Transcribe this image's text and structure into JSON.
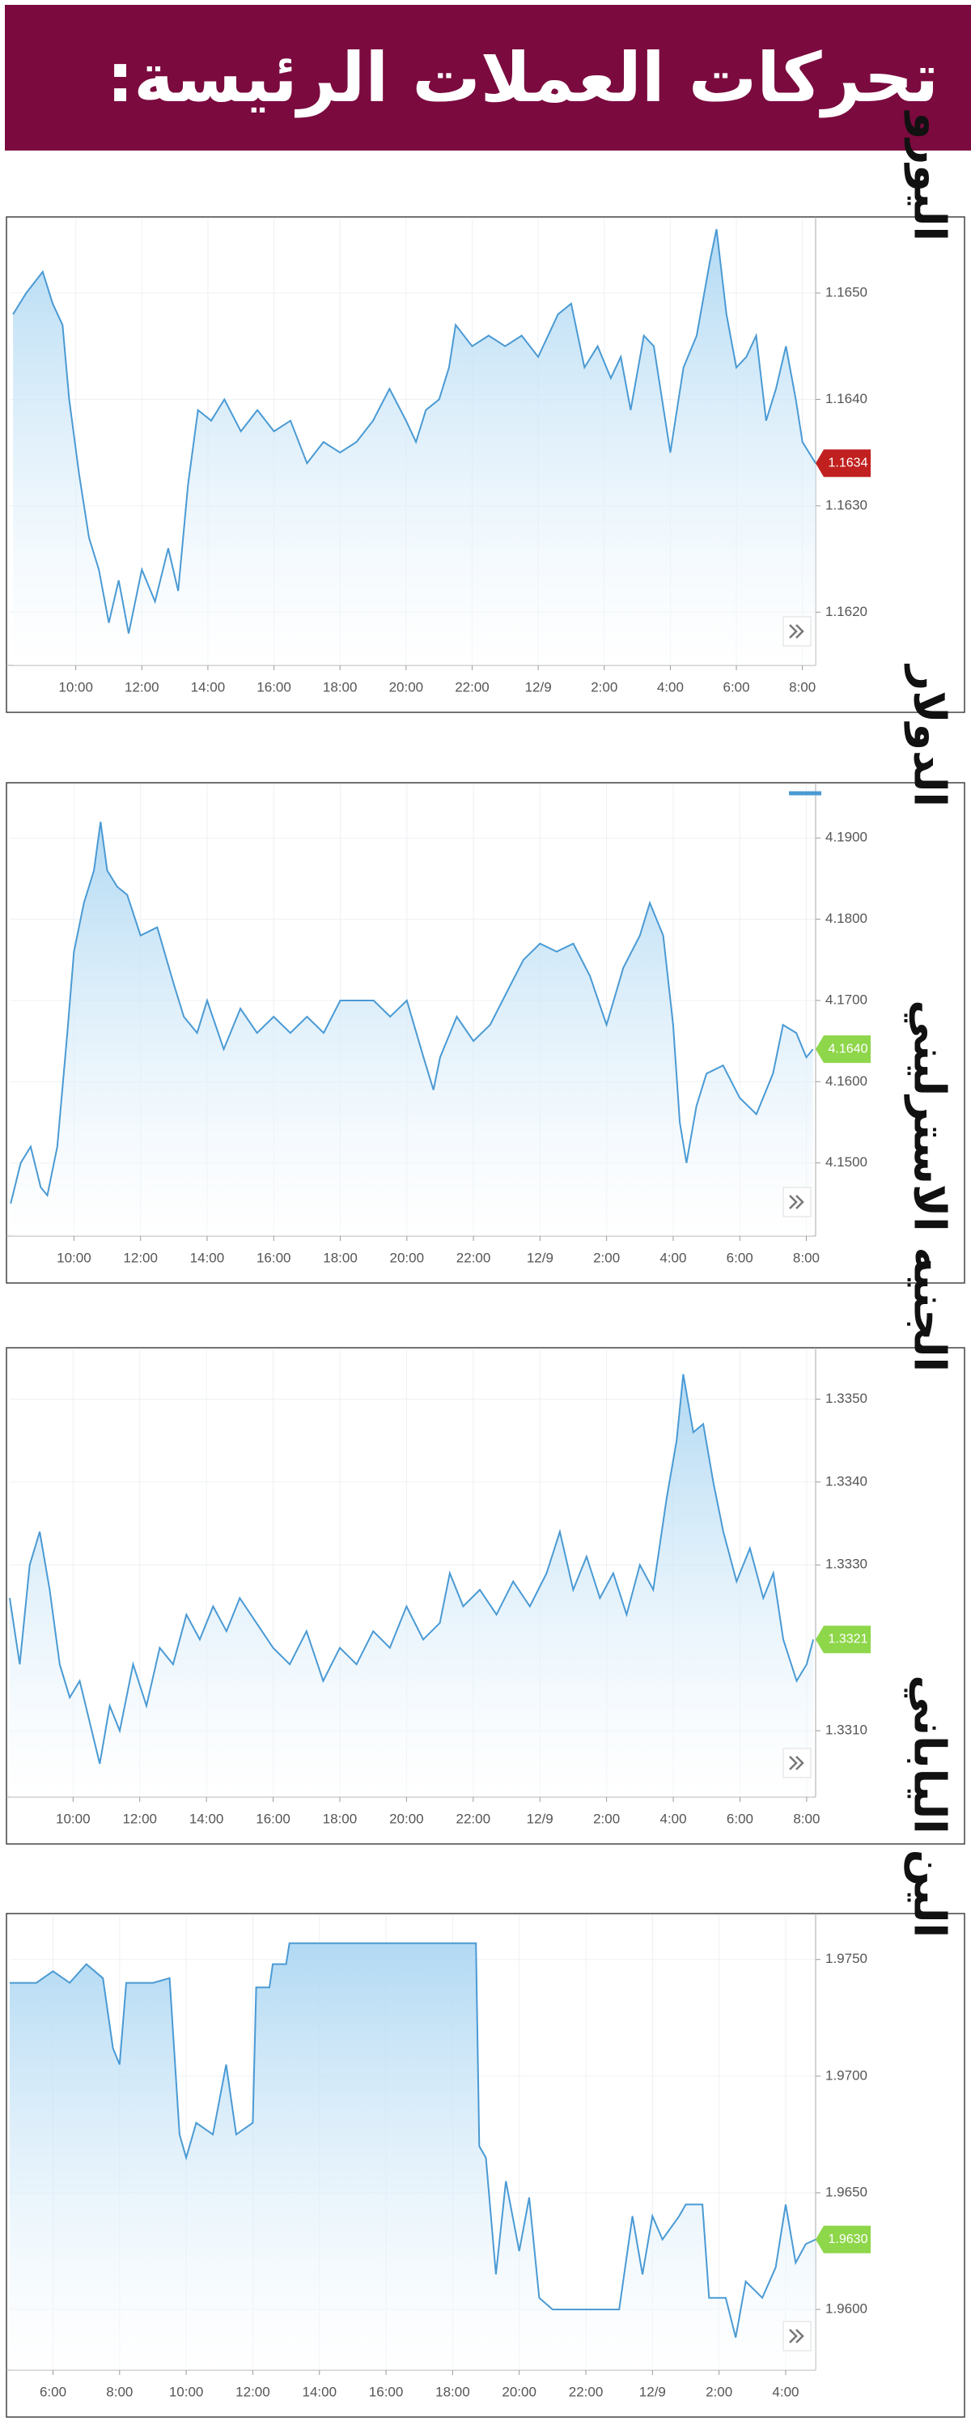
{
  "title": "تحركات العملات الرئيسة:",
  "chart_data": [
    {
      "type": "line",
      "title": "اليورو",
      "color": "#4a9ad4",
      "grid": true,
      "xlim": [
        8,
        32.4
      ],
      "ylim": [
        1.1615,
        1.1657
      ],
      "xticks": [
        {
          "value": 10,
          "label": "10:00"
        },
        {
          "value": 12,
          "label": "12:00"
        },
        {
          "value": 14,
          "label": "14:00"
        },
        {
          "value": 16,
          "label": "16:00"
        },
        {
          "value": 18,
          "label": "18:00"
        },
        {
          "value": 20,
          "label": "20:00"
        },
        {
          "value": 22,
          "label": "22:00"
        },
        {
          "value": 24,
          "label": "12/9"
        },
        {
          "value": 26,
          "label": "2:00"
        },
        {
          "value": 28,
          "label": "4:00"
        },
        {
          "value": 30,
          "label": "6:00"
        },
        {
          "value": 32,
          "label": "8:00"
        }
      ],
      "yticks": [
        {
          "value": 1.162,
          "label": "1.1620"
        },
        {
          "value": 1.163,
          "label": "1.1630"
        },
        {
          "value": 1.164,
          "label": "1.1640"
        },
        {
          "value": 1.165,
          "label": "1.1650"
        }
      ],
      "x": [
        8.1,
        8.5,
        9.0,
        9.3,
        9.6,
        9.8,
        10.1,
        10.4,
        10.7,
        11,
        11.3,
        11.6,
        12,
        12.4,
        12.8,
        13.1,
        13.4,
        13.7,
        14.1,
        14.5,
        15,
        15.5,
        16,
        16.5,
        17,
        17.5,
        18,
        18.5,
        19,
        19.5,
        20,
        20.3,
        20.6,
        21,
        21.3,
        21.5,
        22,
        22.5,
        23,
        23.5,
        24,
        24.3,
        24.6,
        25,
        25.4,
        25.8,
        26.2,
        26.5,
        26.8,
        27.2,
        27.5,
        28,
        28.4,
        28.8,
        29.2,
        29.4,
        29.7,
        30,
        30.3,
        30.6,
        30.9,
        31.2,
        31.5,
        31.8,
        32,
        32.4
      ],
      "values": [
        1.1648,
        1.165,
        1.1652,
        1.1649,
        1.1647,
        1.164,
        1.1633,
        1.1627,
        1.1624,
        1.1619,
        1.1623,
        1.1618,
        1.1624,
        1.1621,
        1.1626,
        1.1622,
        1.1632,
        1.1639,
        1.1638,
        1.164,
        1.1637,
        1.1639,
        1.1637,
        1.1638,
        1.1634,
        1.1636,
        1.1635,
        1.1636,
        1.1638,
        1.1641,
        1.1638,
        1.1636,
        1.1639,
        1.164,
        1.1643,
        1.1647,
        1.1645,
        1.1646,
        1.1645,
        1.1646,
        1.1644,
        1.1646,
        1.1648,
        1.1649,
        1.1643,
        1.1645,
        1.1642,
        1.1644,
        1.1639,
        1.1646,
        1.1645,
        1.1635,
        1.1643,
        1.1646,
        1.1653,
        1.1656,
        1.1648,
        1.1643,
        1.1644,
        1.1646,
        1.1638,
        1.1641,
        1.1645,
        1.164,
        1.1636,
        1.1634
      ],
      "marker": {
        "value": 1.1634,
        "color": "#c0201f"
      }
    },
    {
      "type": "line",
      "title": "الدولار",
      "color": "#4a9ad4",
      "grid": true,
      "xlim": [
        8.07,
        32.28
      ],
      "ylim": [
        4.141,
        4.1966
      ],
      "xticks": [
        {
          "value": 10,
          "label": "10:00"
        },
        {
          "value": 12,
          "label": "12:00"
        },
        {
          "value": 14,
          "label": "14:00"
        },
        {
          "value": 16,
          "label": "16:00"
        },
        {
          "value": 18,
          "label": "18:00"
        },
        {
          "value": 20,
          "label": "20:00"
        },
        {
          "value": 22,
          "label": "22:00"
        },
        {
          "value": 24,
          "label": "12/9"
        },
        {
          "value": 26,
          "label": "2:00"
        },
        {
          "value": 28,
          "label": "4:00"
        },
        {
          "value": 30,
          "label": "6:00"
        },
        {
          "value": 32,
          "label": "8:00"
        }
      ],
      "yticks": [
        {
          "value": 4.15,
          "label": "4.1500"
        },
        {
          "value": 4.16,
          "label": "4.1600"
        },
        {
          "value": 4.17,
          "label": "4.1700"
        },
        {
          "value": 4.18,
          "label": "4.1800"
        },
        {
          "value": 4.19,
          "label": "4.1900"
        }
      ],
      "x": [
        8.1,
        8.4,
        8.7,
        9,
        9.2,
        9.5,
        9.8,
        10,
        10.3,
        10.6,
        10.8,
        11,
        11.3,
        11.6,
        12,
        12.5,
        13,
        13.3,
        13.7,
        14,
        14.5,
        15,
        15.5,
        16,
        16.5,
        17,
        17.5,
        18,
        18.5,
        19,
        19.5,
        20,
        20.5,
        20.8,
        21,
        21.5,
        22,
        22.5,
        23,
        23.5,
        24,
        24.5,
        25,
        25.5,
        26,
        26.5,
        27,
        27.3,
        27.7,
        28,
        28.2,
        28.4,
        28.7,
        29,
        29.5,
        30,
        30.5,
        31,
        31.3,
        31.7,
        32,
        32.2
      ],
      "values": [
        4.145,
        4.15,
        4.152,
        4.147,
        4.146,
        4.152,
        4.166,
        4.176,
        4.182,
        4.186,
        4.192,
        4.186,
        4.184,
        4.183,
        4.178,
        4.179,
        4.172,
        4.168,
        4.166,
        4.17,
        4.164,
        4.169,
        4.166,
        4.168,
        4.166,
        4.168,
        4.166,
        4.17,
        4.17,
        4.17,
        4.168,
        4.17,
        4.163,
        4.159,
        4.163,
        4.168,
        4.165,
        4.167,
        4.171,
        4.175,
        4.177,
        4.176,
        4.177,
        4.173,
        4.167,
        4.174,
        4.178,
        4.182,
        4.178,
        4.167,
        4.155,
        4.15,
        4.157,
        4.161,
        4.162,
        4.158,
        4.156,
        4.161,
        4.167,
        4.166,
        4.163,
        4.164
      ],
      "marker": {
        "value": 4.164,
        "label": "4.1640",
        "color": "#8ed64a"
      }
    },
    {
      "type": "line",
      "title": "الجنيه الاسترليني",
      "color": "#4a9ad4",
      "grid": true,
      "xlim": [
        8.1,
        32.27
      ],
      "ylim": [
        1.3302,
        1.3356
      ],
      "xticks": [
        {
          "value": 10,
          "label": "10:00"
        },
        {
          "value": 12,
          "label": "12:00"
        },
        {
          "value": 14,
          "label": "14:00"
        },
        {
          "value": 16,
          "label": "16:00"
        },
        {
          "value": 18,
          "label": "18:00"
        },
        {
          "value": 20,
          "label": "20:00"
        },
        {
          "value": 22,
          "label": "22:00"
        },
        {
          "value": 24,
          "label": "12/9"
        },
        {
          "value": 26,
          "label": "2:00"
        },
        {
          "value": 28,
          "label": "4:00"
        },
        {
          "value": 30,
          "label": "6:00"
        },
        {
          "value": 32,
          "label": "8:00"
        }
      ],
      "yticks": [
        {
          "value": 1.331,
          "label": "1.3310"
        },
        {
          "value": 1.333,
          "label": "1.3330"
        },
        {
          "value": 1.334,
          "label": "1.3340"
        },
        {
          "value": 1.335,
          "label": "1.3350"
        }
      ],
      "x": [
        8.1,
        8.4,
        8.7,
        9,
        9.3,
        9.6,
        9.9,
        10.2,
        10.5,
        10.8,
        11.1,
        11.4,
        11.8,
        12.2,
        12.6,
        13,
        13.4,
        13.8,
        14.2,
        14.6,
        15,
        15.5,
        16,
        16.5,
        17,
        17.5,
        18,
        18.5,
        19,
        19.5,
        20,
        20.5,
        21,
        21.3,
        21.7,
        22.2,
        22.7,
        23.2,
        23.7,
        24.2,
        24.6,
        25,
        25.4,
        25.8,
        26.2,
        26.6,
        27,
        27.4,
        27.8,
        28.1,
        28.3,
        28.6,
        28.9,
        29.2,
        29.5,
        29.9,
        30.3,
        30.7,
        31,
        31.3,
        31.7,
        32,
        32.2
      ],
      "values": [
        1.3326,
        1.3318,
        1.333,
        1.3334,
        1.3327,
        1.3318,
        1.3314,
        1.3316,
        1.3311,
        1.3306,
        1.3313,
        1.331,
        1.3318,
        1.3313,
        1.332,
        1.3318,
        1.3324,
        1.3321,
        1.3325,
        1.3322,
        1.3326,
        1.3323,
        1.332,
        1.3318,
        1.3322,
        1.3316,
        1.332,
        1.3318,
        1.3322,
        1.332,
        1.3325,
        1.3321,
        1.3323,
        1.3329,
        1.3325,
        1.3327,
        1.3324,
        1.3328,
        1.3325,
        1.3329,
        1.3334,
        1.3327,
        1.3331,
        1.3326,
        1.3329,
        1.3324,
        1.333,
        1.3327,
        1.3338,
        1.3345,
        1.3353,
        1.3346,
        1.3347,
        1.334,
        1.3334,
        1.3328,
        1.3332,
        1.3326,
        1.3329,
        1.3321,
        1.3316,
        1.3318,
        1.3321
      ],
      "marker": {
        "value": 1.3321,
        "color": "#8ed64a"
      }
    },
    {
      "type": "line",
      "title": "الين الياباني",
      "color": "#4a9ad4",
      "grid": true,
      "xlim": [
        4.7,
        28.9
      ],
      "ylim": [
        1.9574,
        1.9769
      ],
      "xticks": [
        {
          "value": 6,
          "label": "6:00"
        },
        {
          "value": 8,
          "label": "8:00"
        },
        {
          "value": 10,
          "label": "10:00"
        },
        {
          "value": 12,
          "label": "12:00"
        },
        {
          "value": 14,
          "label": "14:00"
        },
        {
          "value": 16,
          "label": "16:00"
        },
        {
          "value": 18,
          "label": "18:00"
        },
        {
          "value": 20,
          "label": "20:00"
        },
        {
          "value": 22,
          "label": "22:00"
        },
        {
          "value": 24,
          "label": "12/9"
        },
        {
          "value": 26,
          "label": "2:00"
        },
        {
          "value": 28,
          "label": "4:00"
        }
      ],
      "yticks": [
        {
          "value": 1.96,
          "label": "1.9600"
        },
        {
          "value": 1.965,
          "label": "1.9650"
        },
        {
          "value": 1.97,
          "label": "1.9700"
        },
        {
          "value": 1.975,
          "label": "1.9750"
        }
      ],
      "x": [
        4.7,
        5.5,
        6,
        6.5,
        7,
        7.5,
        7.8,
        8,
        8.2,
        9,
        9.5,
        9.8,
        10,
        10.3,
        10.8,
        11.2,
        11.5,
        12,
        12.1,
        12.5,
        12.6,
        13,
        13.1,
        18.7,
        18.8,
        19,
        19.3,
        19.6,
        20,
        20.3,
        20.6,
        21,
        22.5,
        23,
        23.4,
        23.7,
        24,
        24.3,
        24.8,
        25,
        25.5,
        25.7,
        26.2,
        26.5,
        26.8,
        27.3,
        27.7,
        28,
        28.3,
        28.6,
        28.9
      ],
      "values": [
        1.974,
        1.974,
        1.9745,
        1.974,
        1.9748,
        1.9742,
        1.9712,
        1.9705,
        1.974,
        1.974,
        1.9742,
        1.9675,
        1.9665,
        1.968,
        1.9675,
        1.9705,
        1.9675,
        1.968,
        1.9738,
        1.9738,
        1.9748,
        1.9748,
        1.9757,
        1.9757,
        1.967,
        1.9665,
        1.9615,
        1.9655,
        1.9625,
        1.9648,
        1.9605,
        1.96,
        1.96,
        1.96,
        1.964,
        1.9615,
        1.964,
        1.963,
        1.964,
        1.9645,
        1.9645,
        1.9605,
        1.9605,
        1.9588,
        1.9612,
        1.9605,
        1.9618,
        1.9645,
        1.962,
        1.9628,
        1.963
      ],
      "marker": {
        "value": 1.963,
        "label": "1.9630",
        "color": "#8ed64a"
      }
    }
  ]
}
